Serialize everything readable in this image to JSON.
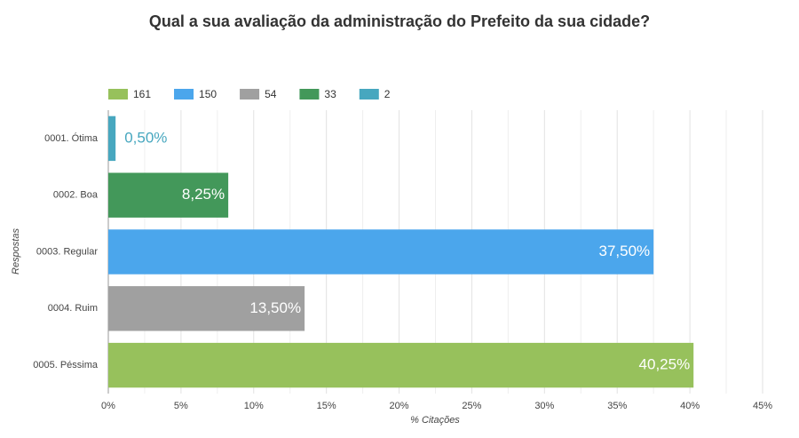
{
  "chart_data": {
    "type": "bar",
    "orientation": "horizontal",
    "title": "Qual a sua avaliação da administração do Prefeito da sua cidade?",
    "x_label": "% Citações",
    "y_label": "Respostas",
    "categories": [
      "0001. Ótima",
      "0002. Boa",
      "0003. Regular",
      "0004. Ruim",
      "0005. Péssima"
    ],
    "series": [
      {
        "name": "161",
        "color": "#97c15c",
        "values": [
          null,
          null,
          null,
          null,
          40.25
        ],
        "value_labels": [
          null,
          null,
          null,
          null,
          "40,25%"
        ]
      },
      {
        "name": "150",
        "color": "#4ba6ec",
        "values": [
          null,
          null,
          37.5,
          null,
          null
        ],
        "value_labels": [
          null,
          null,
          "37,50%",
          null,
          null
        ]
      },
      {
        "name": "54",
        "color": "#a0a0a0",
        "values": [
          null,
          null,
          null,
          13.5,
          null
        ],
        "value_labels": [
          null,
          null,
          null,
          "13,50%",
          null
        ]
      },
      {
        "name": "33",
        "color": "#43985a",
        "values": [
          null,
          8.25,
          null,
          null,
          null
        ],
        "value_labels": [
          null,
          "8,25%",
          null,
          null,
          null
        ]
      },
      {
        "name": "2",
        "color": "#47a7bf",
        "values": [
          0.5,
          null,
          null,
          null,
          null
        ],
        "value_labels": [
          "0,50%",
          null,
          null,
          null,
          null
        ]
      }
    ],
    "xlim": [
      0,
      45
    ],
    "xticks": [
      {
        "value": 0,
        "label": "0%"
      },
      {
        "value": 5,
        "label": "5%"
      },
      {
        "value": 10,
        "label": "10%"
      },
      {
        "value": 15,
        "label": "15%"
      },
      {
        "value": 20,
        "label": "20%"
      },
      {
        "value": 25,
        "label": "25%"
      },
      {
        "value": 30,
        "label": "30%"
      },
      {
        "value": 35,
        "label": "35%"
      },
      {
        "value": 40,
        "label": "40%"
      },
      {
        "value": 45,
        "label": "45%"
      }
    ],
    "minor_xticks": [
      2.5,
      7.5,
      12.5,
      17.5,
      22.5,
      27.5,
      32.5,
      37.5,
      42.5
    ],
    "grid": true,
    "legend": "top"
  }
}
